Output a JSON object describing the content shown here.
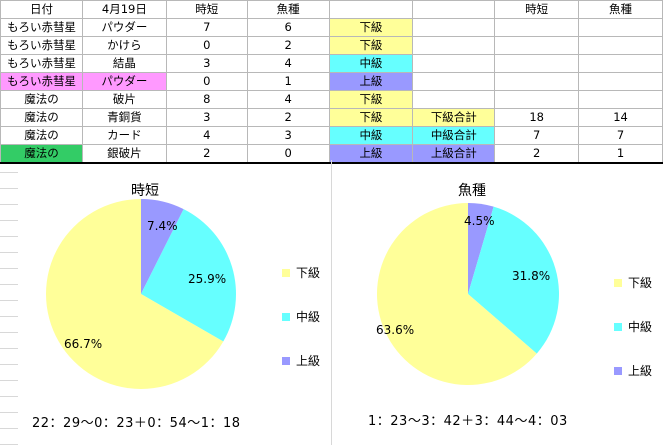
{
  "table": {
    "headers": [
      "日付",
      "4月19日",
      "時短",
      "魚種",
      "",
      "",
      "時短",
      "魚種"
    ],
    "rows": [
      [
        "もろい赤彗星",
        "パウダー",
        "7",
        "6",
        "下級",
        "",
        "",
        ""
      ],
      [
        "もろい赤彗星",
        "かけら",
        "0",
        "2",
        "下級",
        "",
        "",
        ""
      ],
      [
        "もろい赤彗星",
        "結晶",
        "3",
        "4",
        "中級",
        "",
        "",
        ""
      ],
      [
        "もろい赤彗星",
        "パウダー",
        "0",
        "1",
        "上級",
        "",
        "",
        ""
      ],
      [
        "魔法の",
        "破片",
        "8",
        "4",
        "下級",
        "",
        "",
        ""
      ],
      [
        "魔法の",
        "青銅貨",
        "3",
        "2",
        "下級",
        "下級合計",
        "18",
        "14"
      ],
      [
        "魔法の",
        "カード",
        "4",
        "3",
        "中級",
        "中級合計",
        "7",
        "7"
      ],
      [
        "魔法の",
        "銀破片",
        "2",
        "0",
        "上級",
        "上級合計",
        "2",
        "1"
      ]
    ]
  },
  "colors": {
    "yellow": "#ffff99",
    "cyan": "#66ffff",
    "blue": "#9999ff",
    "pink": "#ff99ff",
    "green": "#33cc66"
  },
  "chart_data": [
    {
      "type": "pie",
      "title": "時短",
      "categories": [
        "下級",
        "中級",
        "上級"
      ],
      "values": [
        18,
        7,
        2
      ],
      "labels": [
        "66.7%",
        "25.9%",
        "7.4%"
      ],
      "legend": "right"
    },
    {
      "type": "pie",
      "title": "魚種",
      "categories": [
        "下級",
        "中級",
        "上級"
      ],
      "values": [
        14,
        7,
        1
      ],
      "labels": [
        "63.6%",
        "31.8%",
        "4.5%"
      ],
      "legend": "right"
    }
  ],
  "notes": {
    "left": "22：29～0：23＋0：54～1：18",
    "right": "1：23～3：42＋3：44～4：03"
  }
}
